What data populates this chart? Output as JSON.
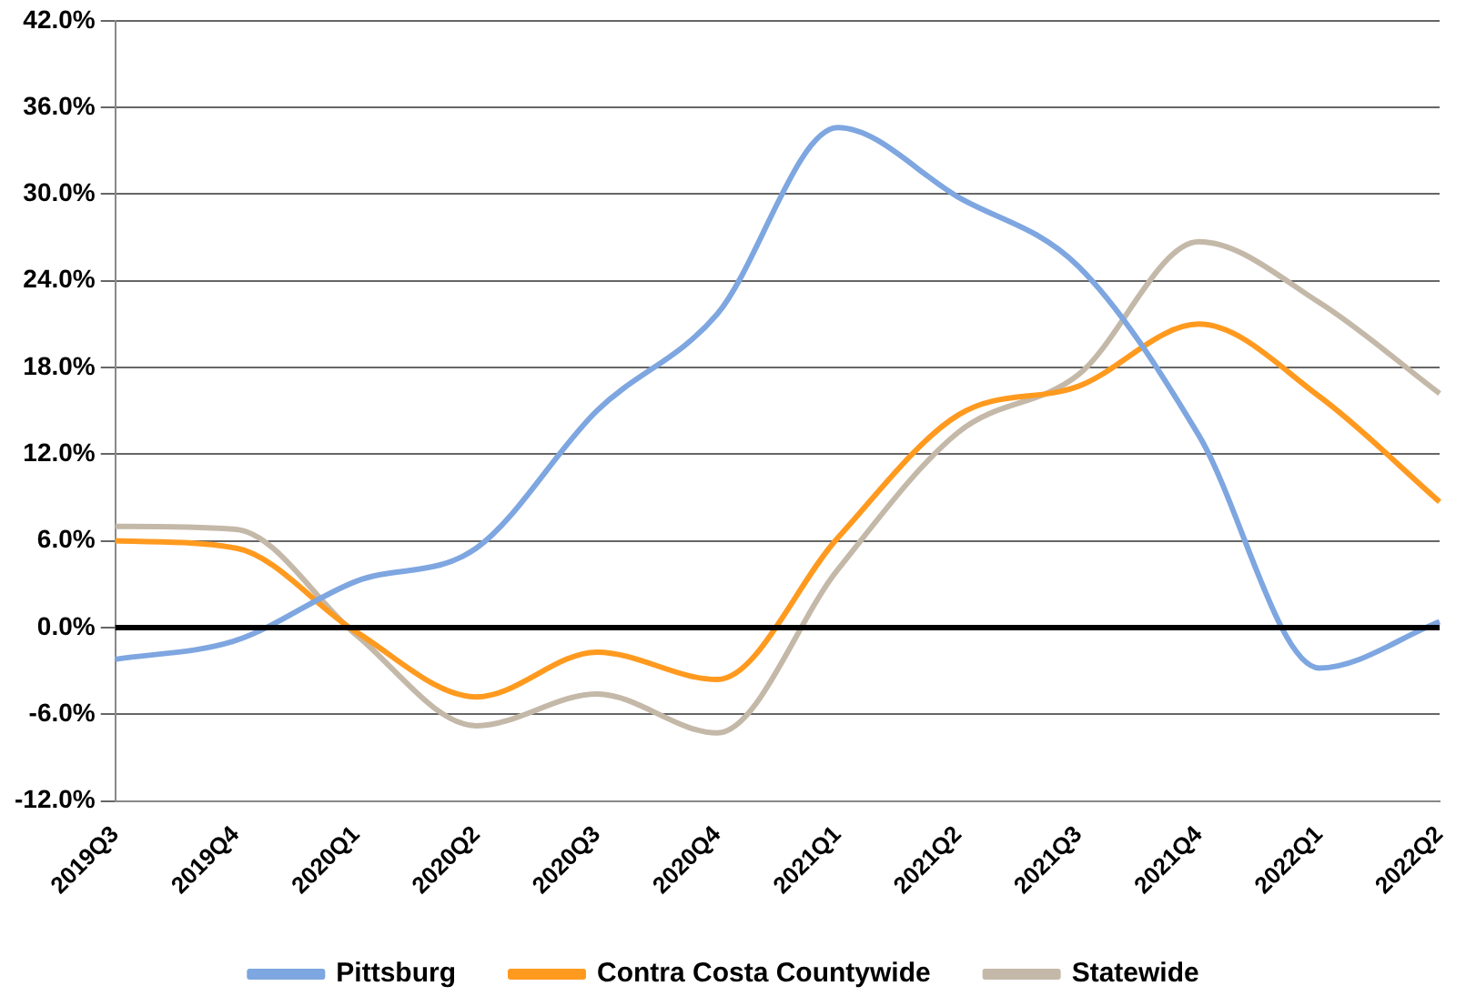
{
  "chart_data": {
    "type": "line",
    "categories": [
      "2019Q3",
      "2019Q4",
      "2020Q1",
      "2020Q2",
      "2020Q3",
      "2020Q4",
      "2021Q1",
      "2021Q2",
      "2021Q3",
      "2021Q4",
      "2022Q1",
      "2022Q2"
    ],
    "series": [
      {
        "name": "Pittsburg",
        "color": "#7ea6e0",
        "values": [
          -2.2,
          -0.9,
          3.2,
          5.5,
          15.0,
          21.7,
          34.6,
          29.8,
          25.0,
          13.3,
          -2.8,
          0.4
        ]
      },
      {
        "name": "Contra Costa Countywide",
        "color": "#ff9a1f",
        "values": [
          6.0,
          5.5,
          -0.3,
          -4.8,
          -1.7,
          -3.6,
          6.2,
          14.7,
          16.7,
          21.0,
          16.0,
          8.7
        ]
      },
      {
        "name": "Statewide",
        "color": "#c4b8a8",
        "values": [
          7.0,
          6.8,
          -0.5,
          -6.8,
          -4.6,
          -7.3,
          4.0,
          13.5,
          17.5,
          26.7,
          22.5,
          16.2
        ]
      }
    ],
    "ylim": [
      -12,
      42
    ],
    "yticks": [
      {
        "value": -12,
        "label": "-12.0%"
      },
      {
        "value": -6,
        "label": "-6.0%"
      },
      {
        "value": 0,
        "label": "0.0%"
      },
      {
        "value": 6,
        "label": "6.0%"
      },
      {
        "value": 12,
        "label": "12.0%"
      },
      {
        "value": 18,
        "label": "18.0%"
      },
      {
        "value": 24,
        "label": "24.0%"
      },
      {
        "value": 30,
        "label": "30.0%"
      },
      {
        "value": 36,
        "label": "36.0%"
      },
      {
        "value": 42,
        "label": "42.0%"
      }
    ],
    "ref_lines": [
      {
        "axis": "y",
        "value": 0,
        "color": "#000000"
      }
    ],
    "grid": "y",
    "legend": "bottom",
    "marker": "none",
    "line_style": "solid"
  }
}
